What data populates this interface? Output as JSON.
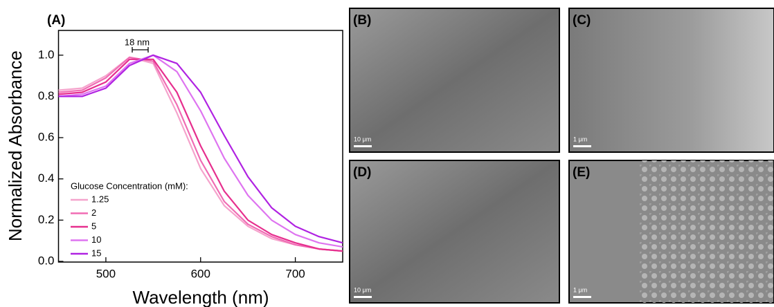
{
  "chart_data": {
    "type": "line",
    "panel_label": "(A)",
    "xlabel": "Wavelength (nm)",
    "ylabel": "Normalized Absorbance",
    "annotation": "18 nm",
    "legend_title": "Glucose Concentration (mM):",
    "x": [
      450,
      475,
      500,
      525,
      550,
      575,
      600,
      625,
      650,
      675,
      700,
      725,
      750
    ],
    "series": [
      {
        "name": "1.25",
        "color": "#f5a3cc",
        "values": [
          0.83,
          0.84,
          0.9,
          0.99,
          0.96,
          0.72,
          0.45,
          0.27,
          0.17,
          0.11,
          0.08,
          0.06,
          0.05
        ]
      },
      {
        "name": "2",
        "color": "#f06cb4",
        "values": [
          0.82,
          0.83,
          0.89,
          0.99,
          0.97,
          0.76,
          0.49,
          0.29,
          0.18,
          0.12,
          0.08,
          0.06,
          0.05
        ]
      },
      {
        "name": "5",
        "color": "#e62f8e",
        "values": [
          0.81,
          0.82,
          0.87,
          0.98,
          0.98,
          0.82,
          0.56,
          0.34,
          0.2,
          0.13,
          0.09,
          0.06,
          0.05
        ]
      },
      {
        "name": "10",
        "color": "#de74f0",
        "values": [
          0.8,
          0.81,
          0.85,
          0.96,
          1.0,
          0.92,
          0.73,
          0.5,
          0.32,
          0.2,
          0.13,
          0.09,
          0.07
        ]
      },
      {
        "name": "15",
        "color": "#b022e2",
        "values": [
          0.8,
          0.8,
          0.84,
          0.95,
          1.0,
          0.96,
          0.82,
          0.61,
          0.41,
          0.26,
          0.17,
          0.12,
          0.09
        ]
      }
    ],
    "xlim": [
      450,
      750
    ],
    "xticks": [
      500,
      600,
      700
    ],
    "ylim": [
      0,
      1.12
    ],
    "yticks": [
      {
        "value": 0,
        "label": "0.0"
      },
      0.2,
      0.4,
      0.6,
      0.8,
      {
        "value": 1,
        "label": "1.0"
      }
    ]
  },
  "images": [
    {
      "label": "(B)",
      "scale": "10 μm"
    },
    {
      "label": "(C)",
      "scale": "1 μm"
    },
    {
      "label": "(D)",
      "scale": "10 μm"
    },
    {
      "label": "(E)",
      "scale": "1 μm"
    }
  ]
}
